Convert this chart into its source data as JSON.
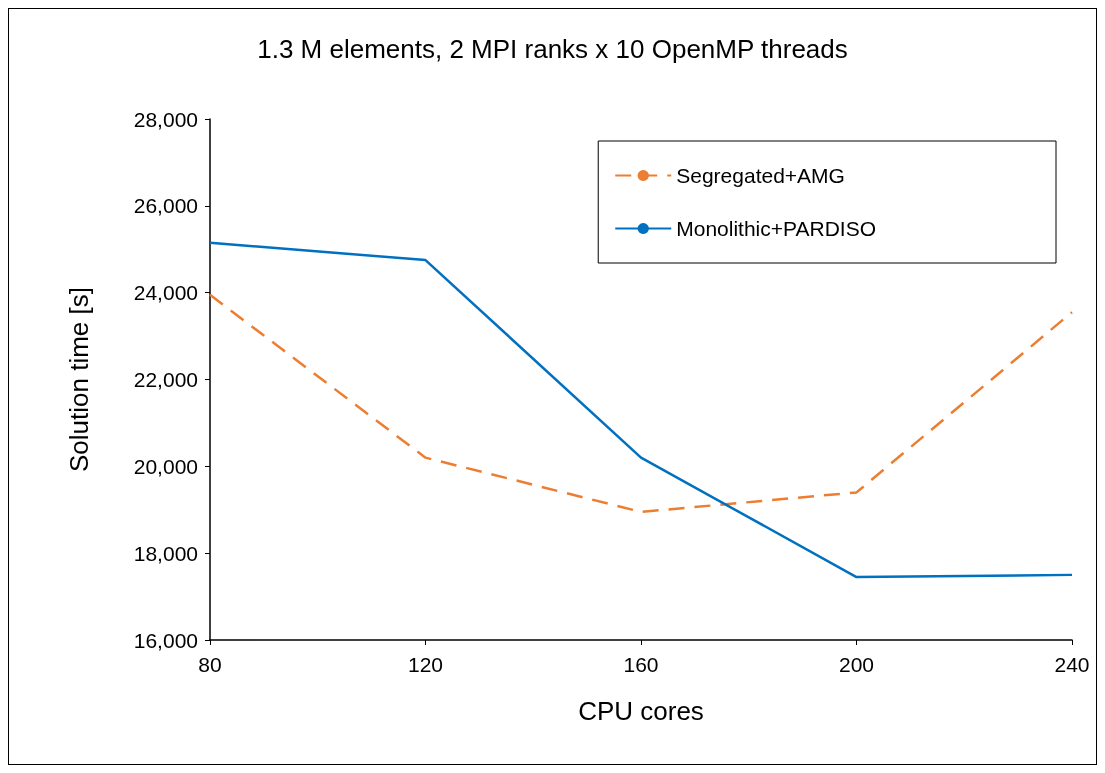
{
  "chart_data": {
    "type": "line",
    "title": "1.3 M elements, 2 MPI ranks x 10 OpenMP threads",
    "xlabel": "CPU cores",
    "ylabel": "Solution time [s]",
    "x": [
      80,
      120,
      160,
      200,
      240
    ],
    "series": [
      {
        "name": "Segregated+AMG",
        "color": "#ed7d31",
        "line_style": "dashed",
        "values": [
          23950,
          20200,
          18950,
          19400,
          23550
        ]
      },
      {
        "name": "Monolithic+PARDISO",
        "color": "#0070c0",
        "line_style": "solid",
        "values": [
          25150,
          24750,
          20200,
          17450,
          17500
        ]
      }
    ],
    "xlim": [
      80,
      240
    ],
    "xticks": [
      80,
      120,
      160,
      200,
      240
    ],
    "ylim": [
      16000,
      28000
    ],
    "yticks": [
      {
        "value": 16000,
        "label": "16,000"
      },
      {
        "value": 18000,
        "label": "18,000"
      },
      {
        "value": 20000,
        "label": "20,000"
      },
      {
        "value": 22000,
        "label": "22,000"
      },
      {
        "value": 24000,
        "label": "24,000"
      },
      {
        "value": 26000,
        "label": "26,000"
      },
      {
        "value": 28000,
        "label": "28,000"
      }
    ],
    "grid": false,
    "legend": "top right",
    "marker": "none"
  }
}
